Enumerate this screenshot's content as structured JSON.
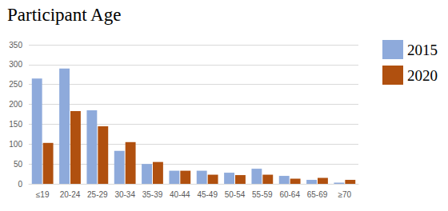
{
  "chart_data": {
    "type": "bar",
    "title": "Participant Age",
    "categories": [
      "≤19",
      "20-24",
      "25-29",
      "30-34",
      "35-39",
      "40-44",
      "45-49",
      "50-54",
      "55-59",
      "60-64",
      "65-69",
      "≥70"
    ],
    "series": [
      {
        "name": "2015",
        "color": "#8eaadb",
        "values": [
          265,
          290,
          185,
          83,
          50,
          33,
          33,
          28,
          38,
          20,
          10,
          3
        ]
      },
      {
        "name": "2020",
        "color": "#b0500f",
        "values": [
          103,
          183,
          145,
          105,
          55,
          33,
          23,
          22,
          23,
          13,
          15,
          10
        ]
      }
    ],
    "ylim": [
      0,
      350
    ],
    "yticks": [
      0,
      50,
      100,
      150,
      200,
      250,
      300,
      350
    ],
    "grid": true,
    "legend": "right"
  }
}
